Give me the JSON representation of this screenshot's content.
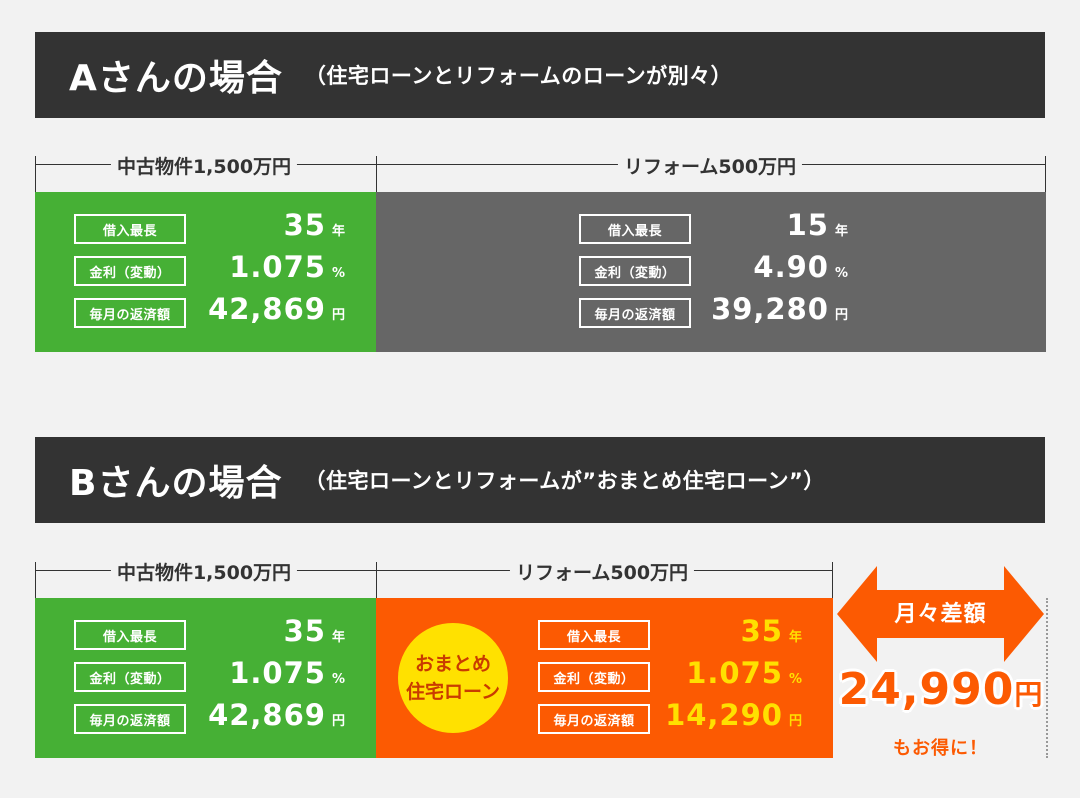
{
  "caseA": {
    "title": "Aさんの場合",
    "subtitle": "（住宅ローンとリフォームのローンが別々）",
    "left_label": "中古物件1,500万円",
    "right_label": "リフォーム500万円",
    "left": {
      "term_label": "借入最長",
      "term": "35",
      "term_unit": "年",
      "rate_label": "金利（変動）",
      "rate": "1.075",
      "rate_unit": "%",
      "pay_label": "毎月の返済額",
      "pay": "42,869",
      "pay_unit": "円"
    },
    "right": {
      "term_label": "借入最長",
      "term": "15",
      "term_unit": "年",
      "rate_label": "金利（変動）",
      "rate": "4.90",
      "rate_unit": "%",
      "pay_label": "毎月の返済額",
      "pay": "39,280",
      "pay_unit": "円"
    }
  },
  "caseB": {
    "title": "Bさんの場合",
    "subtitle": "（住宅ローンとリフォームが”おまとめ住宅ローン”）",
    "left_label": "中古物件1,500万円",
    "right_label": "リフォーム500万円",
    "left": {
      "term_label": "借入最長",
      "term": "35",
      "term_unit": "年",
      "rate_label": "金利（変動）",
      "rate": "1.075",
      "rate_unit": "%",
      "pay_label": "毎月の返済額",
      "pay": "42,869",
      "pay_unit": "円"
    },
    "right": {
      "term_label": "借入最長",
      "term": "35",
      "term_unit": "年",
      "rate_label": "金利（変動）",
      "rate": "1.075",
      "rate_unit": "%",
      "pay_label": "毎月の返済額",
      "pay": "14,290",
      "pay_unit": "円"
    },
    "badge_line1": "おまとめ",
    "badge_line2": "住宅ローン"
  },
  "difference": {
    "label": "月々差額",
    "amount": "24,990",
    "unit": "円",
    "tagline": "もお得に！"
  },
  "colors": {
    "green": "#46b035",
    "gray": "#666666",
    "orange": "#fc5a02",
    "yellow": "#ffe000",
    "header": "#333333"
  }
}
